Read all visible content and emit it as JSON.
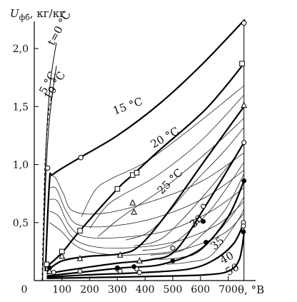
{
  "chart_data": {
    "type": "line",
    "ylabel_main": "U",
    "ylabel_sub": "фб",
    "ylabel_units": ", кг/кг",
    "xlabel": "θ, °B",
    "xlim": [
      0,
      800
    ],
    "ylim": [
      0,
      2.3
    ],
    "xticks": [
      {
        "v": 0,
        "label": "0"
      },
      {
        "v": 100,
        "label": "100"
      },
      {
        "v": 200,
        "label": "200"
      },
      {
        "v": 300,
        "label": "300"
      },
      {
        "v": 400,
        "label": "400"
      },
      {
        "v": 500,
        "label": "500"
      },
      {
        "v": 600,
        "label": "600"
      },
      {
        "v": 700,
        "label": "700"
      }
    ],
    "yticks": [
      {
        "v": 0.5,
        "label": "0,5"
      },
      {
        "v": 1.0,
        "label": "1,0"
      },
      {
        "v": 1.5,
        "label": "1,5"
      },
      {
        "v": 2.0,
        "label": "2,0"
      }
    ],
    "grid": false,
    "series": [
      {
        "name": "t=0 °C",
        "style": "thin",
        "points": [
          [
            30,
            0.0
          ],
          [
            35,
            0.5
          ],
          [
            40,
            1.0
          ],
          [
            48,
            1.4
          ],
          [
            60,
            1.75
          ],
          [
            80,
            2.05
          ]
        ]
      },
      {
        "name": "5 °C",
        "style": "thin",
        "points": [
          [
            30,
            0.0
          ],
          [
            36,
            0.5
          ],
          [
            42,
            0.9
          ],
          [
            50,
            1.25
          ],
          [
            62,
            1.55
          ],
          [
            80,
            1.85
          ]
        ]
      },
      {
        "name": "10 °C",
        "style": "dashed",
        "points": [
          [
            28,
            0.0
          ],
          [
            33,
            0.5
          ],
          [
            38,
            0.95
          ],
          [
            45,
            1.25
          ],
          [
            55,
            1.5
          ],
          [
            70,
            1.65
          ]
        ]
      },
      {
        "name": "15 °C",
        "style": "thick",
        "marker": "circle",
        "points": [
          [
            40,
            0.08
          ],
          [
            55,
            0.85
          ],
          [
            70,
            0.92
          ],
          [
            165,
            1.06
          ],
          [
            300,
            1.25
          ],
          [
            450,
            1.52
          ],
          [
            600,
            1.85
          ],
          [
            760,
            2.25
          ]
        ]
      },
      {
        "name": "20 °C",
        "style": "thick",
        "marker": "square",
        "points": [
          [
            45,
            0.12
          ],
          [
            100,
            0.24
          ],
          [
            165,
            0.43
          ],
          [
            300,
            0.79
          ],
          [
            355,
            0.91
          ],
          [
            450,
            1.12
          ],
          [
            620,
            1.48
          ],
          [
            757,
            1.87
          ]
        ]
      },
      {
        "name": "25 °C",
        "style": "thick",
        "marker": "triangle",
        "points": [
          [
            45,
            0.08
          ],
          [
            100,
            0.17
          ],
          [
            200,
            0.21
          ],
          [
            310,
            0.23
          ],
          [
            380,
            0.3
          ],
          [
            480,
            0.58
          ],
          [
            620,
            1.05
          ],
          [
            757,
            1.5
          ]
        ]
      },
      {
        "name": "30",
        "style": "thick",
        "marker": "open-circle",
        "points": [
          [
            45,
            0.06
          ],
          [
            150,
            0.1
          ],
          [
            300,
            0.15
          ],
          [
            420,
            0.18
          ],
          [
            510,
            0.26
          ],
          [
            620,
            0.65
          ],
          [
            757,
            1.19
          ]
        ]
      },
      {
        "name": "35",
        "style": "thick",
        "marker": "dot",
        "points": [
          [
            45,
            0.04
          ],
          [
            200,
            0.08
          ],
          [
            320,
            0.11
          ],
          [
            460,
            0.14
          ],
          [
            600,
            0.27
          ],
          [
            700,
            0.55
          ],
          [
            757,
            0.86
          ]
        ]
      },
      {
        "name": "40",
        "style": "thick",
        "marker": "open-circle",
        "points": [
          [
            45,
            0.03
          ],
          [
            200,
            0.05
          ],
          [
            400,
            0.07
          ],
          [
            560,
            0.1
          ],
          [
            650,
            0.18
          ],
          [
            720,
            0.32
          ],
          [
            757,
            0.5
          ]
        ]
      },
      {
        "name": "50",
        "style": "thick",
        "points": [
          [
            45,
            0.02
          ],
          [
            300,
            0.03
          ],
          [
            500,
            0.04
          ],
          [
            620,
            0.05
          ],
          [
            700,
            0.08
          ],
          [
            740,
            0.18
          ],
          [
            757,
            0.4
          ]
        ]
      }
    ],
    "thin_isotherms": [
      [
        [
          52,
          0.9
        ],
        [
          75,
          0.89
        ],
        [
          105,
          0.75
        ],
        [
          140,
          0.6
        ],
        [
          250,
          0.58
        ],
        [
          420,
          0.68
        ],
        [
          600,
          0.85
        ],
        [
          757,
          1.1
        ]
      ],
      [
        [
          55,
          0.8
        ],
        [
          80,
          0.79
        ],
        [
          115,
          0.6
        ],
        [
          160,
          0.48
        ],
        [
          280,
          0.47
        ],
        [
          450,
          0.55
        ],
        [
          620,
          0.72
        ],
        [
          757,
          0.95
        ]
      ],
      [
        [
          55,
          0.7
        ],
        [
          85,
          0.68
        ],
        [
          125,
          0.48
        ],
        [
          180,
          0.38
        ],
        [
          300,
          0.37
        ],
        [
          480,
          0.43
        ],
        [
          640,
          0.6
        ],
        [
          757,
          0.8
        ]
      ],
      [
        [
          55,
          0.6
        ],
        [
          90,
          0.55
        ],
        [
          135,
          0.38
        ],
        [
          200,
          0.3
        ],
        [
          320,
          0.28
        ],
        [
          500,
          0.33
        ],
        [
          660,
          0.48
        ],
        [
          757,
          0.68
        ]
      ],
      [
        [
          55,
          0.5
        ],
        [
          95,
          0.43
        ],
        [
          150,
          0.3
        ],
        [
          220,
          0.24
        ],
        [
          340,
          0.22
        ],
        [
          520,
          0.26
        ],
        [
          680,
          0.4
        ],
        [
          757,
          0.58
        ]
      ],
      [
        [
          170,
          0.55
        ],
        [
          220,
          0.78
        ],
        [
          280,
          0.88
        ],
        [
          400,
          1.02
        ],
        [
          560,
          1.3
        ],
        [
          757,
          1.68
        ]
      ],
      [
        [
          200,
          0.45
        ],
        [
          260,
          0.64
        ],
        [
          320,
          0.74
        ],
        [
          440,
          0.9
        ],
        [
          600,
          1.2
        ],
        [
          757,
          1.6
        ]
      ],
      [
        [
          230,
          0.38
        ],
        [
          300,
          0.52
        ],
        [
          370,
          0.64
        ],
        [
          480,
          0.82
        ],
        [
          640,
          1.14
        ],
        [
          757,
          1.4
        ]
      ],
      [
        [
          330,
          0.35
        ],
        [
          400,
          0.4
        ],
        [
          460,
          0.52
        ],
        [
          560,
          0.8
        ],
        [
          680,
          1.1
        ],
        [
          757,
          1.32
        ]
      ],
      [
        [
          360,
          0.3
        ],
        [
          430,
          0.33
        ],
        [
          490,
          0.42
        ],
        [
          600,
          0.7
        ],
        [
          720,
          1.05
        ],
        [
          757,
          1.2
        ]
      ],
      [
        [
          390,
          0.26
        ],
        [
          460,
          0.28
        ],
        [
          520,
          0.35
        ],
        [
          640,
          0.62
        ],
        [
          757,
          1.02
        ]
      ],
      [
        [
          420,
          0.22
        ],
        [
          500,
          0.24
        ],
        [
          560,
          0.3
        ],
        [
          680,
          0.58
        ],
        [
          757,
          0.92
        ]
      ],
      [
        [
          450,
          0.18
        ],
        [
          530,
          0.2
        ],
        [
          600,
          0.26
        ],
        [
          710,
          0.55
        ],
        [
          757,
          0.72
        ]
      ],
      [
        [
          480,
          0.14
        ],
        [
          560,
          0.16
        ],
        [
          640,
          0.22
        ],
        [
          730,
          0.5
        ],
        [
          757,
          0.62
        ]
      ]
    ],
    "markers": {
      "circle": [
        [
          48,
          0.97
        ],
        [
          168,
          1.06
        ],
        [
          757,
          2.22
        ]
      ],
      "square": [
        [
          45,
          0.14
        ],
        [
          100,
          0.25
        ],
        [
          165,
          0.43
        ],
        [
          300,
          0.79
        ],
        [
          355,
          0.91
        ],
        [
          370,
          0.93
        ],
        [
          750,
          1.87
        ]
      ],
      "triangle": [
        [
          55,
          0.08
        ],
        [
          100,
          0.21
        ],
        [
          165,
          0.19
        ],
        [
          310,
          0.22
        ],
        [
          355,
          0.67
        ],
        [
          360,
          0.59
        ],
        [
          380,
          0.17
        ],
        [
          757,
          1.51
        ]
      ],
      "open-circle": [
        [
          70,
          0.07
        ],
        [
          165,
          0.08
        ],
        [
          300,
          0.1
        ],
        [
          310,
          0.08
        ],
        [
          370,
          0.1
        ],
        [
          380,
          0.07
        ],
        [
          500,
          0.28
        ],
        [
          610,
          0.64
        ],
        [
          757,
          1.19
        ],
        [
          755,
          0.5
        ],
        [
          755,
          0.47
        ]
      ],
      "dot": [
        [
          55,
          0.11
        ],
        [
          300,
          0.11
        ],
        [
          360,
          0.12
        ],
        [
          500,
          0.17
        ],
        [
          610,
          0.51
        ],
        [
          620,
          0.33
        ],
        [
          757,
          0.86
        ],
        [
          755,
          0.42
        ]
      ]
    },
    "labels": [
      {
        "text": "t=0 °C",
        "x": 0,
        "y": 0
      },
      {
        "text": "5 °C",
        "x": 0,
        "y": 0
      },
      {
        "text": "10 °C",
        "x": 0,
        "y": 0
      },
      {
        "text": "15 °C",
        "x": 0,
        "y": 0
      },
      {
        "text": "20 °C",
        "x": 0,
        "y": 0
      },
      {
        "text": "25 °C",
        "x": 0,
        "y": 0
      },
      {
        "text": "30",
        "x": 0,
        "y": 0
      },
      {
        "text": "35",
        "x": 0,
        "y": 0
      },
      {
        "text": "40",
        "x": 0,
        "y": 0
      },
      {
        "text": "50",
        "x": 0,
        "y": 0
      }
    ]
  }
}
